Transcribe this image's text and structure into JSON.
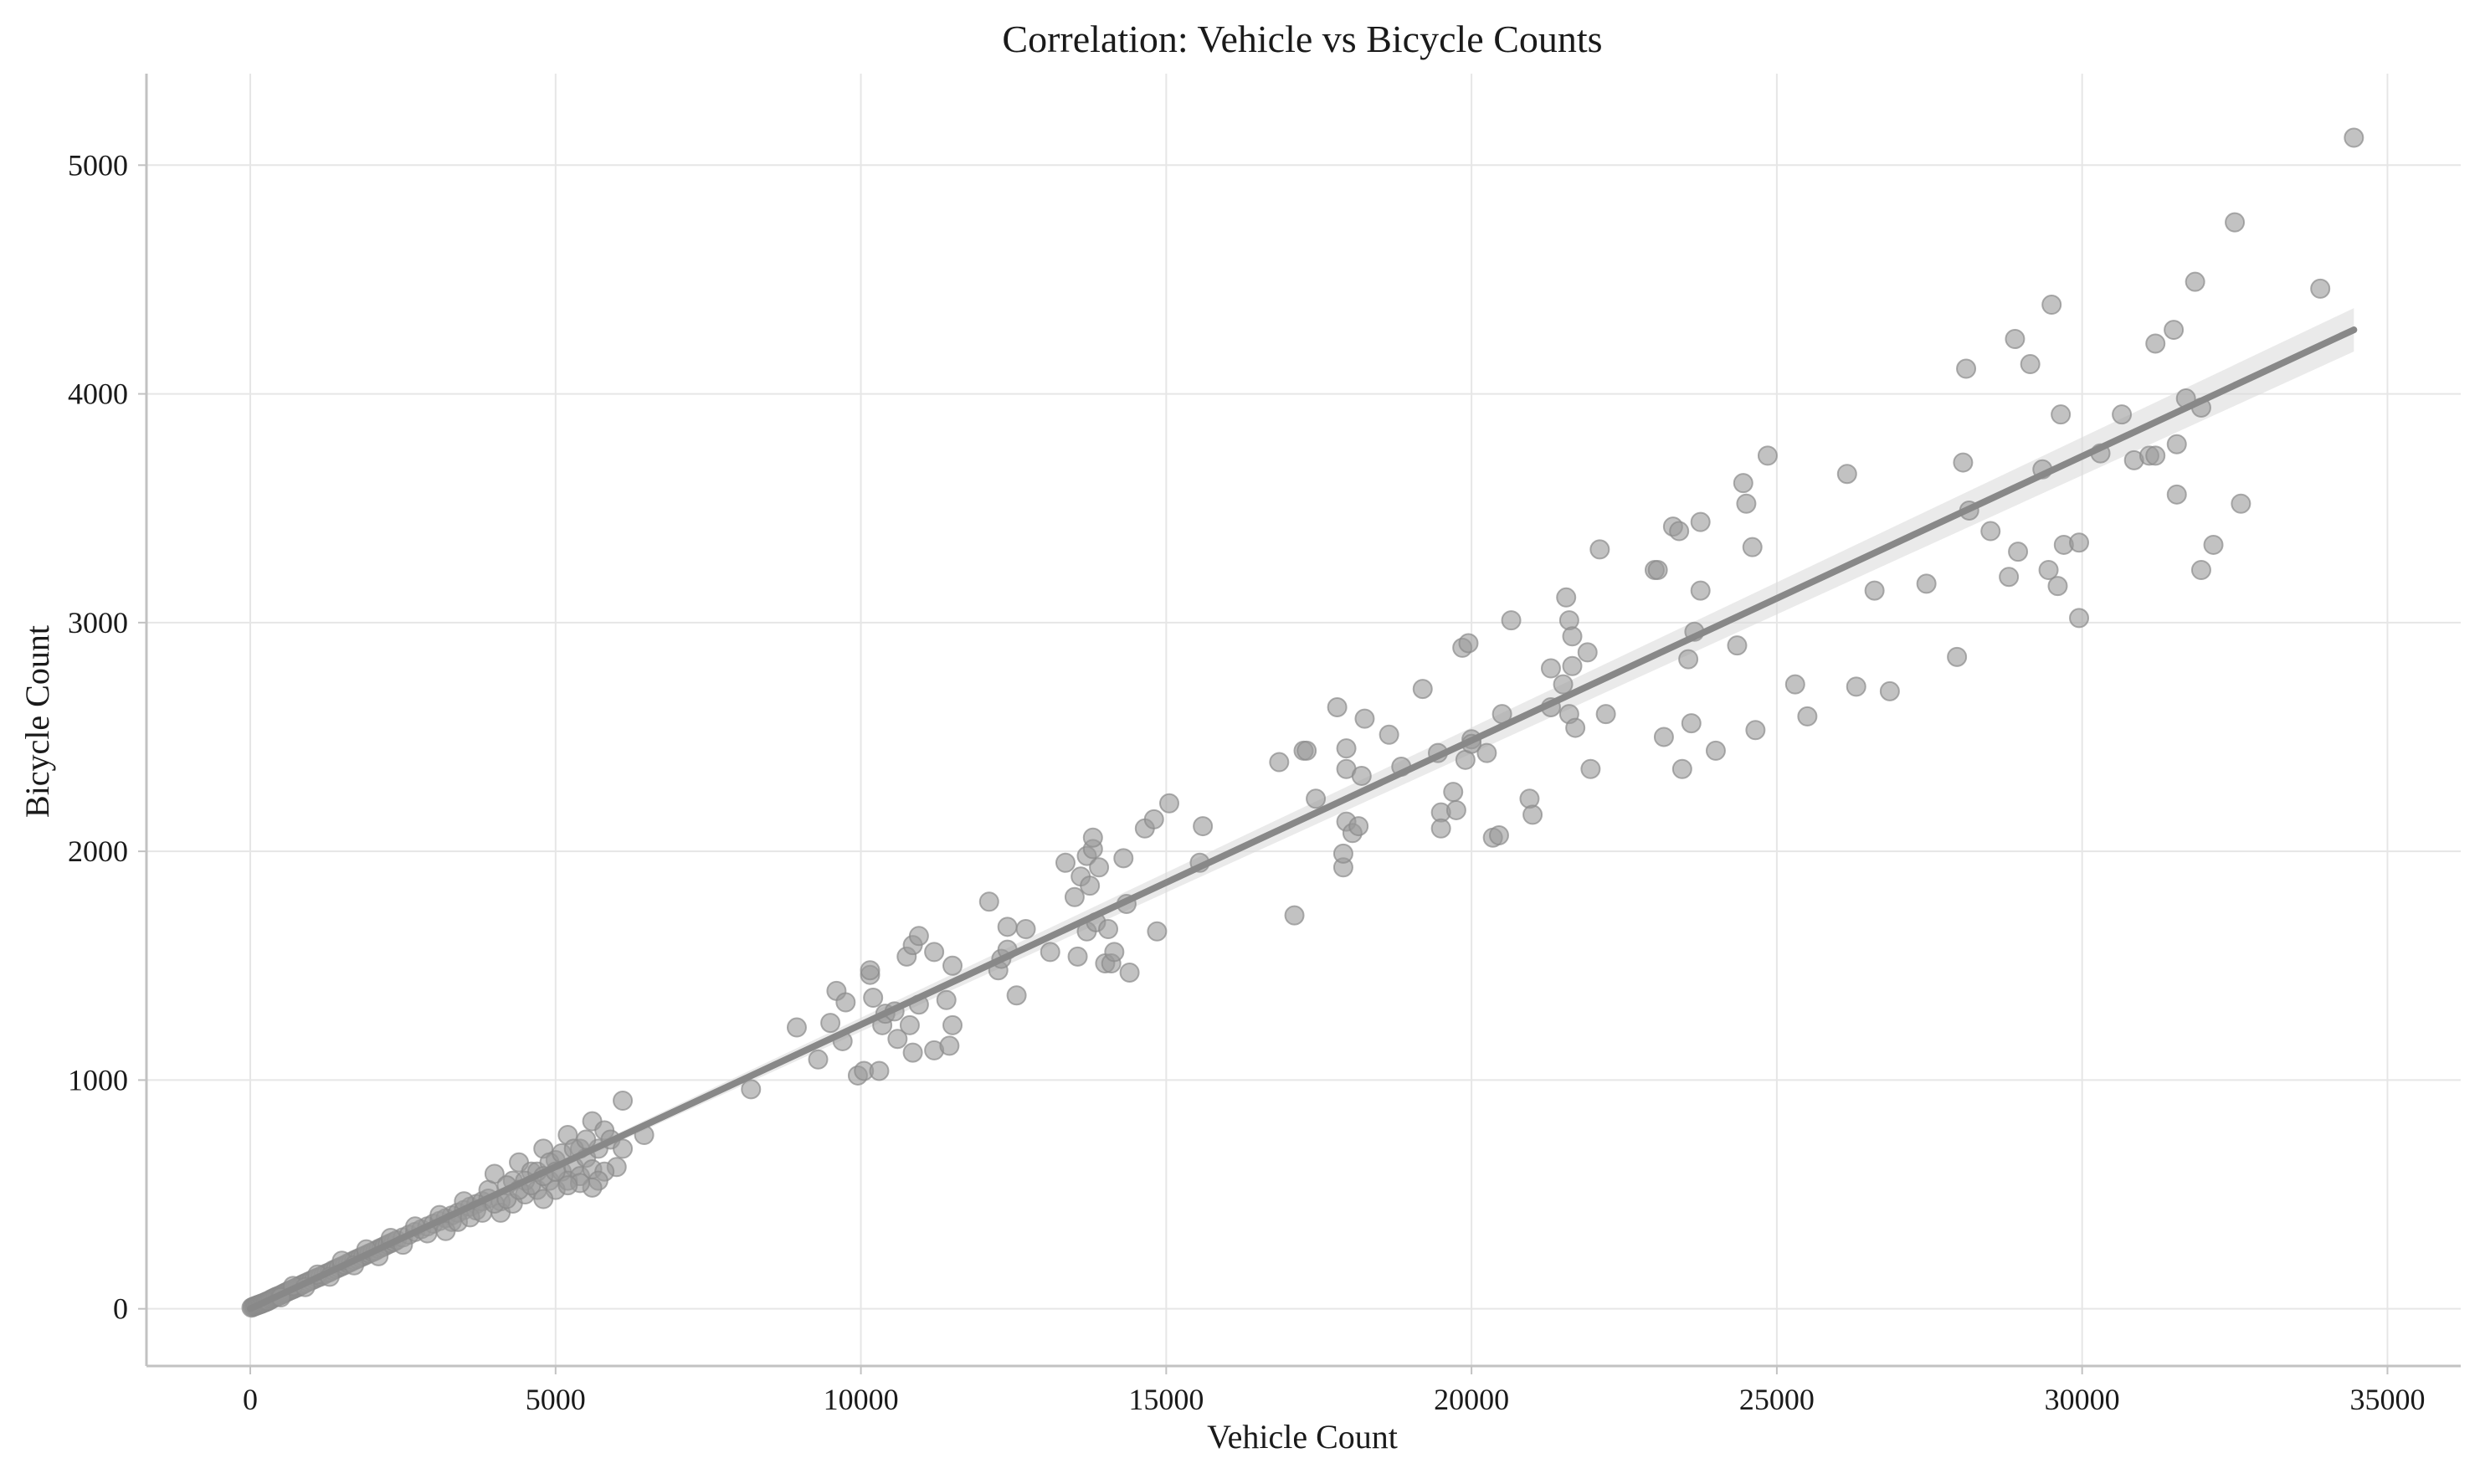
{
  "chart_data": {
    "type": "scatter",
    "title": "Correlation: Vehicle vs Bicycle Counts",
    "xlabel": "Vehicle Count",
    "ylabel": "Bicycle Count",
    "xlim": [
      -1700,
      36200
    ],
    "ylim": [
      -250,
      5400
    ],
    "xticks": [
      0,
      5000,
      10000,
      15000,
      20000,
      25000,
      30000,
      35000
    ],
    "yticks": [
      0,
      1000,
      2000,
      3000,
      4000,
      5000
    ],
    "xtick_labels": [
      "0",
      "5000",
      "10000",
      "15000",
      "20000",
      "25000",
      "30000",
      "35000"
    ],
    "ytick_labels": [
      "0",
      "1000",
      "2000",
      "3000",
      "4000",
      "5000"
    ],
    "grid": true,
    "legend": "none",
    "colors": {
      "points": "#9a9a9a",
      "regression": "#888888",
      "ci_band": "#d9d9d9"
    },
    "regression": {
      "x_start": 0,
      "y_start": 0,
      "x_end": 34450,
      "y_end": 4280,
      "ci_halfwidth_at_end": 95
    },
    "points": [
      [
        20,
        5
      ],
      [
        40,
        8
      ],
      [
        60,
        10
      ],
      [
        80,
        12
      ],
      [
        100,
        14
      ],
      [
        120,
        16
      ],
      [
        140,
        18
      ],
      [
        160,
        20
      ],
      [
        180,
        22
      ],
      [
        200,
        24
      ],
      [
        220,
        26
      ],
      [
        240,
        28
      ],
      [
        260,
        31
      ],
      [
        280,
        33
      ],
      [
        300,
        35
      ],
      [
        330,
        40
      ],
      [
        360,
        44
      ],
      [
        390,
        48
      ],
      [
        420,
        52
      ],
      [
        450,
        55
      ],
      [
        480,
        58
      ],
      [
        510,
        62
      ],
      [
        540,
        66
      ],
      [
        570,
        70
      ],
      [
        600,
        74
      ],
      [
        630,
        78
      ],
      [
        660,
        81
      ],
      [
        690,
        85
      ],
      [
        720,
        88
      ],
      [
        750,
        92
      ],
      [
        780,
        95
      ],
      [
        810,
        100
      ],
      [
        840,
        104
      ],
      [
        870,
        108
      ],
      [
        900,
        112
      ],
      [
        950,
        118
      ],
      [
        1000,
        124
      ],
      [
        1050,
        130
      ],
      [
        1100,
        136
      ],
      [
        1150,
        141
      ],
      [
        1200,
        148
      ],
      [
        1250,
        155
      ],
      [
        1300,
        160
      ],
      [
        1350,
        168
      ],
      [
        1400,
        174
      ],
      [
        1450,
        180
      ],
      [
        1500,
        186
      ],
      [
        1550,
        192
      ],
      [
        1600,
        199
      ],
      [
        1650,
        205
      ],
      [
        1700,
        212
      ],
      [
        1750,
        218
      ],
      [
        1800,
        224
      ],
      [
        1850,
        230
      ],
      [
        1900,
        236
      ],
      [
        1950,
        242
      ],
      [
        2000,
        248
      ],
      [
        2050,
        254
      ],
      [
        2100,
        262
      ],
      [
        2150,
        268
      ],
      [
        2200,
        274
      ],
      [
        2250,
        281
      ],
      [
        2300,
        287
      ],
      [
        2350,
        293
      ],
      [
        2400,
        300
      ],
      [
        2500,
        312
      ],
      [
        2600,
        324
      ],
      [
        2700,
        336
      ],
      [
        2800,
        348
      ],
      [
        2900,
        360
      ],
      [
        3000,
        372
      ],
      [
        3100,
        384
      ],
      [
        3200,
        396
      ],
      [
        3300,
        408
      ],
      [
        3400,
        420
      ],
      [
        3500,
        432
      ],
      [
        3600,
        446
      ],
      [
        3700,
        458
      ],
      [
        3800,
        470
      ],
      [
        3900,
        482
      ],
      [
        500,
        50
      ],
      [
        700,
        100
      ],
      [
        900,
        95
      ],
      [
        1100,
        150
      ],
      [
        1300,
        140
      ],
      [
        1500,
        210
      ],
      [
        1700,
        190
      ],
      [
        1900,
        260
      ],
      [
        2100,
        230
      ],
      [
        2300,
        310
      ],
      [
        2500,
        280
      ],
      [
        2700,
        360
      ],
      [
        2900,
        330
      ],
      [
        3100,
        410
      ],
      [
        3300,
        380
      ],
      [
        3500,
        470
      ],
      [
        3700,
        430
      ],
      [
        3900,
        520
      ],
      [
        4100,
        470
      ],
      [
        4300,
        560
      ],
      [
        4000,
        590
      ],
      [
        4200,
        540
      ],
      [
        4400,
        640
      ],
      [
        4600,
        600
      ],
      [
        4800,
        700
      ],
      [
        5000,
        650
      ],
      [
        5200,
        760
      ],
      [
        5400,
        700
      ],
      [
        5600,
        820
      ],
      [
        5800,
        780
      ],
      [
        4100,
        420
      ],
      [
        4300,
        460
      ],
      [
        4500,
        500
      ],
      [
        4700,
        520
      ],
      [
        4900,
        560
      ],
      [
        5100,
        600
      ],
      [
        5300,
        620
      ],
      [
        5500,
        660
      ],
      [
        5700,
        700
      ],
      [
        5900,
        740
      ],
      [
        4500,
        560
      ],
      [
        4700,
        600
      ],
      [
        4900,
        640
      ],
      [
        5100,
        680
      ],
      [
        5300,
        700
      ],
      [
        5500,
        740
      ],
      [
        5000,
        520
      ],
      [
        5200,
        560
      ],
      [
        5400,
        580
      ],
      [
        5600,
        610
      ],
      [
        3200,
        340
      ],
      [
        3400,
        380
      ],
      [
        3600,
        400
      ],
      [
        3800,
        420
      ],
      [
        4000,
        460
      ],
      [
        4200,
        480
      ],
      [
        4400,
        520
      ],
      [
        4600,
        540
      ],
      [
        4800,
        580
      ],
      [
        5000,
        600
      ],
      [
        6100,
        910
      ],
      [
        6000,
        620
      ],
      [
        6450,
        760
      ],
      [
        6100,
        700
      ],
      [
        5800,
        600
      ],
      [
        5700,
        560
      ],
      [
        5600,
        530
      ],
      [
        5400,
        550
      ],
      [
        5200,
        540
      ],
      [
        4800,
        480
      ],
      [
        8200,
        960
      ],
      [
        8950,
        1230
      ],
      [
        9300,
        1090
      ],
      [
        9500,
        1250
      ],
      [
        9600,
        1390
      ],
      [
        9700,
        1170
      ],
      [
        9750,
        1340
      ],
      [
        9950,
        1020
      ],
      [
        10050,
        1040
      ],
      [
        10150,
        1460
      ],
      [
        10150,
        1480
      ],
      [
        10200,
        1360
      ],
      [
        10300,
        1040
      ],
      [
        10350,
        1240
      ],
      [
        10400,
        1290
      ],
      [
        10550,
        1300
      ],
      [
        10600,
        1180
      ],
      [
        10750,
        1540
      ],
      [
        10800,
        1240
      ],
      [
        10850,
        1120
      ],
      [
        10850,
        1590
      ],
      [
        10950,
        1330
      ],
      [
        10950,
        1630
      ],
      [
        11200,
        1560
      ],
      [
        11200,
        1130
      ],
      [
        11400,
        1350
      ],
      [
        11450,
        1150
      ],
      [
        11500,
        1240
      ],
      [
        11500,
        1500
      ],
      [
        12100,
        1780
      ],
      [
        12250,
        1480
      ],
      [
        12300,
        1530
      ],
      [
        12400,
        1570
      ],
      [
        12400,
        1670
      ],
      [
        12550,
        1370
      ],
      [
        12700,
        1660
      ],
      [
        13100,
        1560
      ],
      [
        13350,
        1950
      ],
      [
        13500,
        1800
      ],
      [
        13550,
        1540
      ],
      [
        13600,
        1890
      ],
      [
        13700,
        1980
      ],
      [
        13700,
        1650
      ],
      [
        13750,
        1850
      ],
      [
        13800,
        2010
      ],
      [
        13800,
        2060
      ],
      [
        13850,
        1690
      ],
      [
        13900,
        1930
      ],
      [
        14000,
        1510
      ],
      [
        14050,
        1660
      ],
      [
        14100,
        1510
      ],
      [
        14150,
        1560
      ],
      [
        14300,
        1970
      ],
      [
        14350,
        1770
      ],
      [
        14400,
        1470
      ],
      [
        14650,
        2100
      ],
      [
        14800,
        2140
      ],
      [
        14850,
        1650
      ],
      [
        15050,
        2210
      ],
      [
        15550,
        1950
      ],
      [
        15600,
        2110
      ],
      [
        16850,
        2390
      ],
      [
        17100,
        1720
      ],
      [
        17250,
        2440
      ],
      [
        17300,
        2440
      ],
      [
        17450,
        2230
      ],
      [
        17800,
        2630
      ],
      [
        17900,
        1930
      ],
      [
        17900,
        1990
      ],
      [
        17950,
        2360
      ],
      [
        17950,
        2450
      ],
      [
        17950,
        2130
      ],
      [
        18050,
        2080
      ],
      [
        18150,
        2110
      ],
      [
        18200,
        2330
      ],
      [
        18250,
        2580
      ],
      [
        18650,
        2510
      ],
      [
        18850,
        2370
      ],
      [
        19200,
        2710
      ],
      [
        19450,
        2430
      ],
      [
        19500,
        2170
      ],
      [
        19500,
        2100
      ],
      [
        19700,
        2260
      ],
      [
        19750,
        2180
      ],
      [
        19850,
        2890
      ],
      [
        19900,
        2400
      ],
      [
        19950,
        2910
      ],
      [
        20000,
        2490
      ],
      [
        20000,
        2470
      ],
      [
        20250,
        2430
      ],
      [
        20350,
        2060
      ],
      [
        20450,
        2070
      ],
      [
        20500,
        2600
      ],
      [
        20650,
        3010
      ],
      [
        20950,
        2230
      ],
      [
        21000,
        2160
      ],
      [
        21300,
        2800
      ],
      [
        21300,
        2630
      ],
      [
        21500,
        2730
      ],
      [
        21550,
        3110
      ],
      [
        21600,
        3010
      ],
      [
        21600,
        2600
      ],
      [
        21650,
        2810
      ],
      [
        21650,
        2940
      ],
      [
        21700,
        2540
      ],
      [
        21900,
        2870
      ],
      [
        21950,
        2360
      ],
      [
        22100,
        3320
      ],
      [
        22200,
        2600
      ],
      [
        23000,
        3230
      ],
      [
        23050,
        3230
      ],
      [
        23150,
        2500
      ],
      [
        23300,
        3420
      ],
      [
        23400,
        3400
      ],
      [
        23450,
        2360
      ],
      [
        23550,
        2840
      ],
      [
        23600,
        2560
      ],
      [
        23650,
        2960
      ],
      [
        23750,
        3140
      ],
      [
        23750,
        3440
      ],
      [
        24000,
        2440
      ],
      [
        24350,
        2900
      ],
      [
        24450,
        3610
      ],
      [
        24500,
        3520
      ],
      [
        24600,
        3330
      ],
      [
        24650,
        2530
      ],
      [
        24850,
        3730
      ],
      [
        25300,
        2730
      ],
      [
        25500,
        2590
      ],
      [
        26150,
        3650
      ],
      [
        26300,
        2720
      ],
      [
        26600,
        3140
      ],
      [
        26850,
        2700
      ],
      [
        27450,
        3170
      ],
      [
        27950,
        2850
      ],
      [
        28050,
        3700
      ],
      [
        28100,
        4110
      ],
      [
        28150,
        3490
      ],
      [
        28500,
        3400
      ],
      [
        28800,
        3200
      ],
      [
        28900,
        4240
      ],
      [
        28950,
        3310
      ],
      [
        29150,
        4130
      ],
      [
        29350,
        3670
      ],
      [
        29450,
        3230
      ],
      [
        29500,
        4390
      ],
      [
        29600,
        3160
      ],
      [
        29650,
        3910
      ],
      [
        29700,
        3340
      ],
      [
        29950,
        3350
      ],
      [
        29950,
        3020
      ],
      [
        30300,
        3740
      ],
      [
        30650,
        3910
      ],
      [
        30850,
        3710
      ],
      [
        31100,
        3730
      ],
      [
        31200,
        4220
      ],
      [
        31200,
        3730
      ],
      [
        31500,
        4280
      ],
      [
        31550,
        3780
      ],
      [
        31550,
        3560
      ],
      [
        31700,
        3980
      ],
      [
        31850,
        4490
      ],
      [
        31950,
        3940
      ],
      [
        31950,
        3230
      ],
      [
        32150,
        3340
      ],
      [
        32500,
        4750
      ],
      [
        32600,
        3520
      ],
      [
        33900,
        4460
      ],
      [
        34450,
        5120
      ]
    ]
  }
}
